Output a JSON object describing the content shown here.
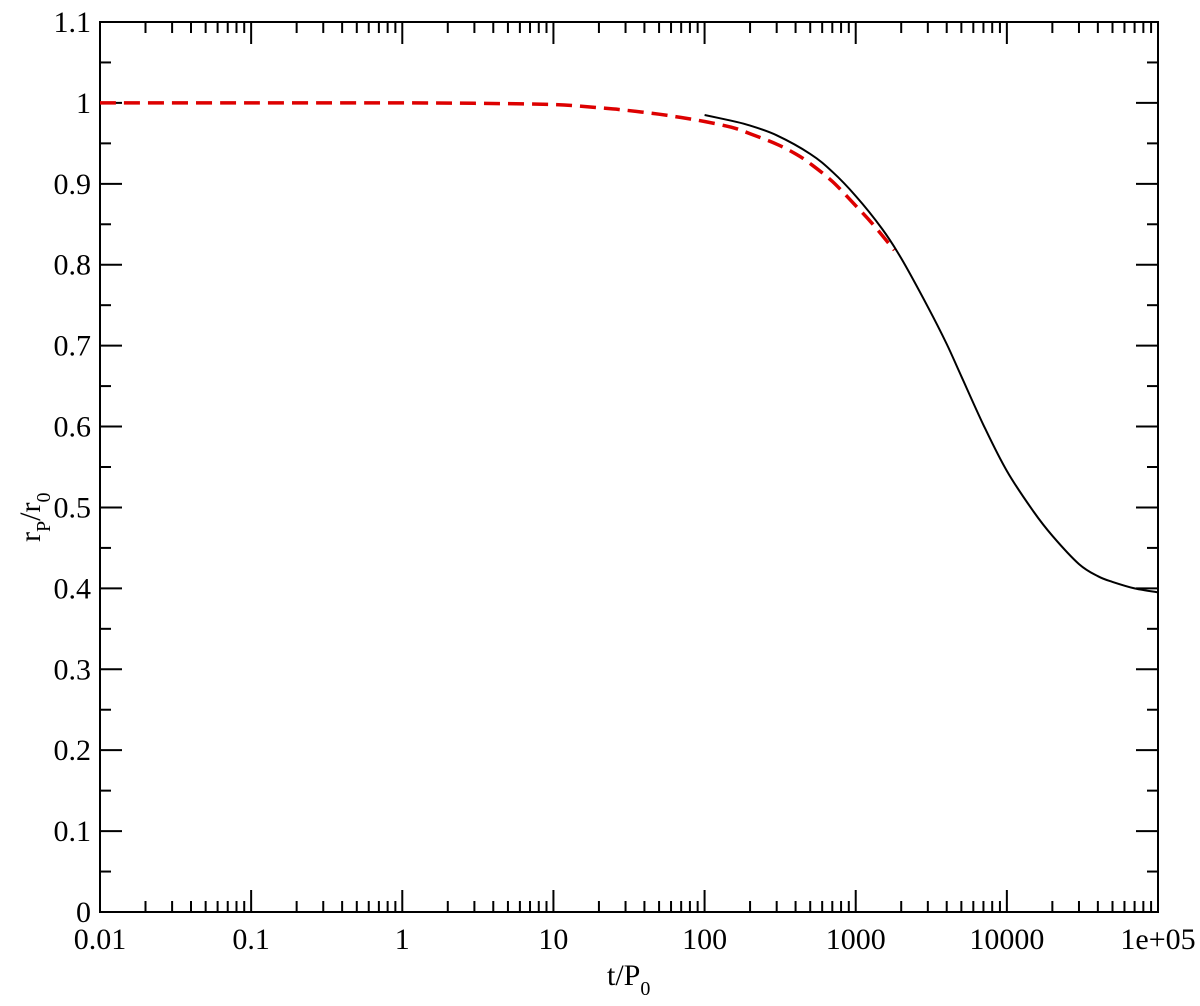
{
  "chart_data": {
    "type": "line",
    "xlabel": {
      "main": "t/P",
      "sub": "0"
    },
    "ylabel": {
      "main1": "r",
      "sub1": "P",
      "main2": "/r",
      "sub2": "0"
    },
    "x_scale": "log",
    "xlim": [
      0.01,
      100000
    ],
    "ylim": [
      0,
      1.1
    ],
    "x_ticks": [
      {
        "value": 0.01,
        "label": "0.01"
      },
      {
        "value": 0.1,
        "label": "0.1"
      },
      {
        "value": 1,
        "label": "1"
      },
      {
        "value": 10,
        "label": "10"
      },
      {
        "value": 100,
        "label": "100"
      },
      {
        "value": 1000,
        "label": "1000"
      },
      {
        "value": 10000,
        "label": "10000"
      },
      {
        "value": 100000,
        "label": "1e+05"
      }
    ],
    "y_ticks": [
      {
        "value": 0,
        "label": "0"
      },
      {
        "value": 0.1,
        "label": "0.1"
      },
      {
        "value": 0.2,
        "label": "0.2"
      },
      {
        "value": 0.3,
        "label": "0.3"
      },
      {
        "value": 0.4,
        "label": "0.4"
      },
      {
        "value": 0.5,
        "label": "0.5"
      },
      {
        "value": 0.6,
        "label": "0.6"
      },
      {
        "value": 0.7,
        "label": "0.7"
      },
      {
        "value": 0.8,
        "label": "0.8"
      },
      {
        "value": 0.9,
        "label": "0.9"
      },
      {
        "value": 1,
        "label": "1"
      },
      {
        "value": 1.1,
        "label": "1.1"
      }
    ],
    "grid": false,
    "series": [
      {
        "color": "#dd0000",
        "style": "dashed",
        "x": [
          0.01,
          0.1,
          1,
          3,
          10,
          20,
          30,
          50,
          70,
          100,
          150,
          200,
          300,
          400,
          500,
          700,
          1000,
          1300,
          1800
        ],
        "y": [
          1.0,
          1.0,
          1.0,
          0.9995,
          0.998,
          0.994,
          0.991,
          0.986,
          0.982,
          0.977,
          0.97,
          0.962,
          0.949,
          0.937,
          0.925,
          0.903,
          0.873,
          0.85,
          0.818
        ]
      },
      {
        "color": "#000000",
        "style": "solid",
        "x": [
          100,
          150,
          200,
          300,
          500,
          700,
          1000,
          1500,
          2000,
          3000,
          4000,
          5000,
          7000,
          10000,
          15000,
          20000,
          30000,
          40000,
          50000,
          70000,
          100000
        ],
        "y": [
          0.985,
          0.978,
          0.972,
          0.96,
          0.937,
          0.915,
          0.885,
          0.844,
          0.808,
          0.748,
          0.702,
          0.662,
          0.602,
          0.545,
          0.495,
          0.465,
          0.43,
          0.415,
          0.408,
          0.4,
          0.395
        ]
      }
    ]
  }
}
